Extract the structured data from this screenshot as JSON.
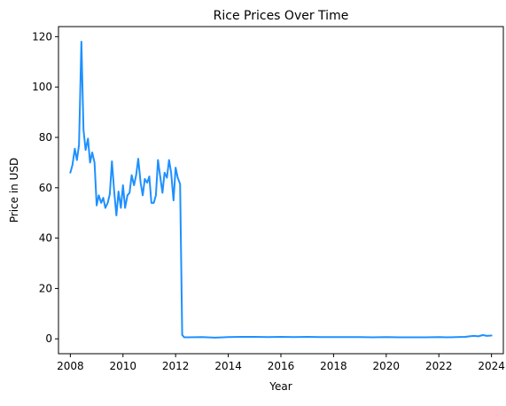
{
  "chart_data": {
    "type": "line",
    "title": "Rice Prices Over Time",
    "xlabel": "Year",
    "ylabel": "Price in USD",
    "xlim": [
      2007.55,
      2024.45
    ],
    "ylim": [
      -5.9,
      124.0
    ],
    "x_ticks": [
      2008,
      2010,
      2012,
      2014,
      2016,
      2018,
      2020,
      2022,
      2024
    ],
    "x_tick_labels": [
      "2008",
      "2010",
      "2012",
      "2014",
      "2016",
      "2018",
      "2020",
      "2022",
      "2024"
    ],
    "y_ticks": [
      0,
      20,
      40,
      60,
      80,
      100,
      120
    ],
    "y_tick_labels": [
      "0",
      "20",
      "40",
      "60",
      "80",
      "100",
      "120"
    ],
    "grid": false,
    "series": [
      {
        "color": "#1e90ff",
        "x": [
          2008.0,
          2008.08,
          2008.17,
          2008.25,
          2008.33,
          2008.42,
          2008.5,
          2008.58,
          2008.67,
          2008.75,
          2008.83,
          2008.92,
          2009.0,
          2009.08,
          2009.17,
          2009.25,
          2009.33,
          2009.42,
          2009.5,
          2009.58,
          2009.67,
          2009.75,
          2009.83,
          2009.92,
          2010.0,
          2010.08,
          2010.17,
          2010.25,
          2010.33,
          2010.42,
          2010.5,
          2010.58,
          2010.67,
          2010.75,
          2010.83,
          2010.92,
          2011.0,
          2011.08,
          2011.17,
          2011.25,
          2011.33,
          2011.42,
          2011.5,
          2011.58,
          2011.67,
          2011.75,
          2011.83,
          2011.92,
          2012.0,
          2012.08,
          2012.17,
          2012.25,
          2012.33,
          2012.5,
          2013.0,
          2013.5,
          2014.0,
          2014.5,
          2015.0,
          2015.5,
          2016.0,
          2016.5,
          2017.0,
          2017.5,
          2018.0,
          2018.5,
          2019.0,
          2019.5,
          2020.0,
          2020.5,
          2021.0,
          2021.5,
          2022.0,
          2022.33,
          2022.67,
          2023.0,
          2023.17,
          2023.33,
          2023.5,
          2023.67,
          2023.83,
          2024.0
        ],
        "y": [
          66,
          69,
          75.5,
          71,
          77,
          118,
          83,
          75,
          79.5,
          70,
          74,
          70,
          53,
          57,
          54,
          56,
          52,
          54,
          57.5,
          70.5,
          58,
          49,
          58.5,
          52,
          61,
          52,
          57,
          58,
          65,
          61,
          65,
          71.5,
          62,
          57,
          63.5,
          62,
          64.5,
          54,
          54,
          57,
          71,
          64,
          58,
          66,
          64,
          71,
          66,
          55,
          68,
          64,
          61.5,
          1.5,
          0.6,
          0.6,
          0.7,
          0.5,
          0.7,
          0.8,
          0.8,
          0.7,
          0.8,
          0.7,
          0.8,
          0.7,
          0.7,
          0.7,
          0.7,
          0.6,
          0.7,
          0.6,
          0.6,
          0.6,
          0.7,
          0.6,
          0.7,
          0.8,
          1.0,
          1.2,
          1.0,
          1.5,
          1.2,
          1.3
        ]
      }
    ]
  }
}
